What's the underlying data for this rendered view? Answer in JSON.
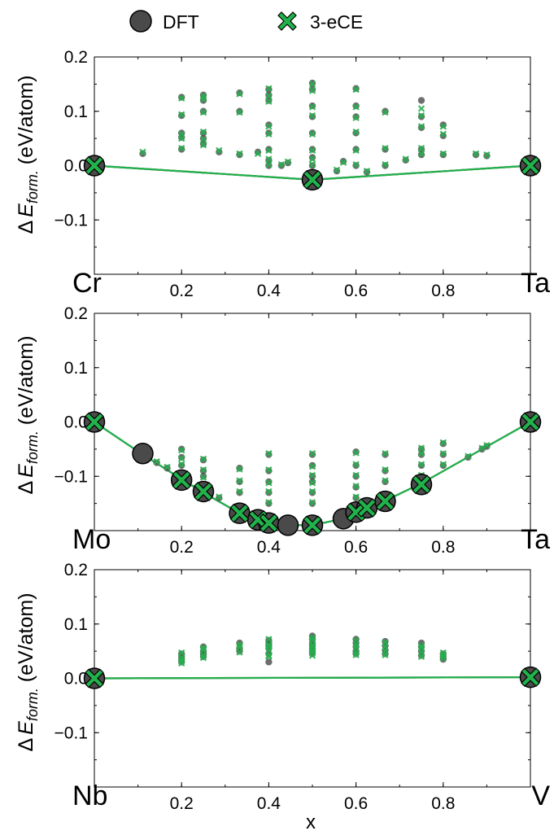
{
  "legend": {
    "dft_label": "DFT",
    "ece_label": "3-eCE",
    "dft_color": "#4a4a4a",
    "ece_color": "#22b24c"
  },
  "xlabel": "x",
  "ylabel_parts": {
    "delta": "Δ",
    "e": "E",
    "sub": "form.",
    "units": " (eV/atom)"
  },
  "chart_data": [
    {
      "type": "scatter",
      "left_label": "Cr",
      "right_label": "Ta",
      "xlim": [
        0,
        1
      ],
      "ylim": [
        -0.2,
        0.2
      ],
      "xticks": [
        "0.2",
        "0.4",
        "0.6",
        "0.8"
      ],
      "yticks": [
        "0.2",
        "0.1",
        "0.0",
        "−0.1"
      ],
      "hull": [
        [
          0,
          0.0
        ],
        [
          0.5,
          -0.026
        ],
        [
          1,
          0.0
        ]
      ],
      "ground_states": [
        [
          0,
          0.0
        ],
        [
          0.5,
          -0.026
        ],
        [
          1,
          0.0
        ]
      ],
      "dft_points": [
        [
          0.111,
          0.022
        ],
        [
          0.2,
          0.126
        ],
        [
          0.2,
          0.092
        ],
        [
          0.2,
          0.06
        ],
        [
          0.2,
          0.052
        ],
        [
          0.2,
          0.03
        ],
        [
          0.25,
          0.13
        ],
        [
          0.25,
          0.12
        ],
        [
          0.25,
          0.1
        ],
        [
          0.25,
          0.06
        ],
        [
          0.25,
          0.05
        ],
        [
          0.25,
          0.04
        ],
        [
          0.286,
          0.025
        ],
        [
          0.333,
          0.134
        ],
        [
          0.333,
          0.1
        ],
        [
          0.333,
          0.02
        ],
        [
          0.375,
          0.025
        ],
        [
          0.4,
          0.14
        ],
        [
          0.4,
          0.13
        ],
        [
          0.4,
          0.12
        ],
        [
          0.4,
          0.075
        ],
        [
          0.4,
          0.06
        ],
        [
          0.4,
          0.03
        ],
        [
          0.4,
          0.01
        ],
        [
          0.4,
          0.0
        ],
        [
          0.429,
          0.0
        ],
        [
          0.444,
          0.005
        ],
        [
          0.5,
          0.152
        ],
        [
          0.5,
          0.14
        ],
        [
          0.5,
          0.11
        ],
        [
          0.5,
          0.09
        ],
        [
          0.5,
          0.06
        ],
        [
          0.5,
          0.03
        ],
        [
          0.5,
          0.015
        ],
        [
          0.5,
          0.0
        ],
        [
          0.556,
          -0.01
        ],
        [
          0.571,
          0.008
        ],
        [
          0.6,
          0.142
        ],
        [
          0.6,
          0.11
        ],
        [
          0.6,
          0.09
        ],
        [
          0.6,
          0.06
        ],
        [
          0.6,
          0.03
        ],
        [
          0.6,
          0.0
        ],
        [
          0.625,
          -0.012
        ],
        [
          0.667,
          0.1
        ],
        [
          0.667,
          0.03
        ],
        [
          0.667,
          0.0
        ],
        [
          0.714,
          0.01
        ],
        [
          0.75,
          0.12
        ],
        [
          0.75,
          0.09
        ],
        [
          0.75,
          0.07
        ],
        [
          0.75,
          0.03
        ],
        [
          0.75,
          0.02
        ],
        [
          0.8,
          0.075
        ],
        [
          0.8,
          0.055
        ],
        [
          0.8,
          0.02
        ],
        [
          0.875,
          0.02
        ],
        [
          0.9,
          0.018
        ]
      ],
      "ece_points": [
        [
          0.111,
          0.025
        ],
        [
          0.2,
          0.124
        ],
        [
          0.2,
          0.094
        ],
        [
          0.2,
          0.058
        ],
        [
          0.2,
          0.05
        ],
        [
          0.2,
          0.032
        ],
        [
          0.25,
          0.128
        ],
        [
          0.25,
          0.122
        ],
        [
          0.25,
          0.098
        ],
        [
          0.25,
          0.062
        ],
        [
          0.25,
          0.048
        ],
        [
          0.25,
          0.038
        ],
        [
          0.286,
          0.028
        ],
        [
          0.333,
          0.132
        ],
        [
          0.333,
          0.098
        ],
        [
          0.333,
          0.022
        ],
        [
          0.375,
          0.022
        ],
        [
          0.4,
          0.142
        ],
        [
          0.4,
          0.128
        ],
        [
          0.4,
          0.118
        ],
        [
          0.4,
          0.072
        ],
        [
          0.4,
          0.058
        ],
        [
          0.4,
          0.028
        ],
        [
          0.4,
          0.012
        ],
        [
          0.4,
          0.002
        ],
        [
          0.429,
          0.002
        ],
        [
          0.444,
          0.007
        ],
        [
          0.5,
          0.15
        ],
        [
          0.5,
          0.138
        ],
        [
          0.5,
          0.108
        ],
        [
          0.5,
          0.092
        ],
        [
          0.5,
          0.058
        ],
        [
          0.5,
          0.028
        ],
        [
          0.5,
          0.012
        ],
        [
          0.5,
          0.002
        ],
        [
          0.556,
          -0.008
        ],
        [
          0.571,
          0.006
        ],
        [
          0.6,
          0.14
        ],
        [
          0.6,
          0.108
        ],
        [
          0.6,
          0.088
        ],
        [
          0.6,
          0.062
        ],
        [
          0.6,
          0.028
        ],
        [
          0.6,
          0.002
        ],
        [
          0.625,
          -0.01
        ],
        [
          0.667,
          0.098
        ],
        [
          0.667,
          0.032
        ],
        [
          0.667,
          0.002
        ],
        [
          0.714,
          0.012
        ],
        [
          0.75,
          0.105
        ],
        [
          0.75,
          0.092
        ],
        [
          0.75,
          0.072
        ],
        [
          0.75,
          0.032
        ],
        [
          0.75,
          0.022
        ],
        [
          0.8,
          0.072
        ],
        [
          0.8,
          0.058
        ],
        [
          0.8,
          0.022
        ],
        [
          0.875,
          0.022
        ],
        [
          0.9,
          0.02
        ]
      ]
    },
    {
      "type": "scatter",
      "left_label": "Mo",
      "right_label": "Ta",
      "xlim": [
        0,
        1
      ],
      "ylim": [
        -0.2,
        0.2
      ],
      "xticks": [
        "0.2",
        "0.4",
        "0.6",
        "0.8"
      ],
      "yticks": [
        "0.2",
        "0.1",
        "0.0",
        "−0.1"
      ],
      "hull": [
        [
          0,
          0.0
        ],
        [
          0.111,
          -0.06
        ],
        [
          0.2,
          -0.105
        ],
        [
          0.25,
          -0.13
        ],
        [
          0.333,
          -0.168
        ],
        [
          0.375,
          -0.18
        ],
        [
          0.4,
          -0.185
        ],
        [
          0.444,
          -0.19
        ],
        [
          0.5,
          -0.19
        ],
        [
          0.571,
          -0.178
        ],
        [
          0.6,
          -0.165
        ],
        [
          0.625,
          -0.158
        ],
        [
          0.667,
          -0.145
        ],
        [
          0.75,
          -0.113
        ],
        [
          1,
          0.0
        ]
      ],
      "ground_states": [
        [
          0,
          0.0
        ],
        [
          0.111,
          -0.058
        ],
        [
          0.2,
          -0.107
        ],
        [
          0.25,
          -0.128
        ],
        [
          0.333,
          -0.168
        ],
        [
          0.375,
          -0.18
        ],
        [
          0.4,
          -0.186
        ],
        [
          0.444,
          -0.19
        ],
        [
          0.5,
          -0.19
        ],
        [
          0.571,
          -0.178
        ],
        [
          0.6,
          -0.166
        ],
        [
          0.625,
          -0.158
        ],
        [
          0.667,
          -0.146
        ],
        [
          0.75,
          -0.115
        ],
        [
          1,
          0.0
        ]
      ],
      "dft_only": [
        [
          0.111,
          -0.058
        ],
        [
          0.444,
          -0.19
        ],
        [
          0.571,
          -0.178
        ],
        [
          0.75,
          -0.115
        ]
      ],
      "ece_marks": [
        [
          0,
          0.0
        ],
        [
          0.2,
          -0.107
        ],
        [
          0.25,
          -0.128
        ],
        [
          0.333,
          -0.168
        ],
        [
          0.375,
          -0.18
        ],
        [
          0.4,
          -0.186
        ],
        [
          0.5,
          -0.19
        ],
        [
          0.6,
          -0.166
        ],
        [
          0.625,
          -0.158
        ],
        [
          0.667,
          -0.146
        ],
        [
          0.75,
          -0.115
        ],
        [
          1,
          0.0
        ]
      ],
      "dft_points": [
        [
          0.143,
          -0.075
        ],
        [
          0.167,
          -0.085
        ],
        [
          0.2,
          -0.05
        ],
        [
          0.2,
          -0.065
        ],
        [
          0.2,
          -0.08
        ],
        [
          0.25,
          -0.07
        ],
        [
          0.25,
          -0.09
        ],
        [
          0.25,
          -0.1
        ],
        [
          0.286,
          -0.14
        ],
        [
          0.333,
          -0.085
        ],
        [
          0.333,
          -0.11
        ],
        [
          0.333,
          -0.13
        ],
        [
          0.4,
          -0.06
        ],
        [
          0.4,
          -0.09
        ],
        [
          0.4,
          -0.11
        ],
        [
          0.4,
          -0.13
        ],
        [
          0.4,
          -0.15
        ],
        [
          0.5,
          -0.06
        ],
        [
          0.5,
          -0.08
        ],
        [
          0.5,
          -0.1
        ],
        [
          0.5,
          -0.11
        ],
        [
          0.5,
          -0.13
        ],
        [
          0.5,
          -0.15
        ],
        [
          0.6,
          -0.055
        ],
        [
          0.6,
          -0.08
        ],
        [
          0.6,
          -0.1
        ],
        [
          0.6,
          -0.12
        ],
        [
          0.6,
          -0.14
        ],
        [
          0.667,
          -0.06
        ],
        [
          0.667,
          -0.09
        ],
        [
          0.667,
          -0.11
        ],
        [
          0.75,
          -0.05
        ],
        [
          0.75,
          -0.06
        ],
        [
          0.75,
          -0.08
        ],
        [
          0.75,
          -0.1
        ],
        [
          0.8,
          -0.04
        ],
        [
          0.8,
          -0.06
        ],
        [
          0.8,
          -0.08
        ],
        [
          0.857,
          -0.065
        ],
        [
          0.889,
          -0.05
        ],
        [
          0.9,
          -0.045
        ]
      ],
      "ece_points": [
        [
          0.143,
          -0.073
        ],
        [
          0.167,
          -0.083
        ],
        [
          0.2,
          -0.052
        ],
        [
          0.2,
          -0.067
        ],
        [
          0.2,
          -0.078
        ],
        [
          0.25,
          -0.068
        ],
        [
          0.25,
          -0.088
        ],
        [
          0.25,
          -0.102
        ],
        [
          0.286,
          -0.138
        ],
        [
          0.333,
          -0.087
        ],
        [
          0.333,
          -0.108
        ],
        [
          0.333,
          -0.128
        ],
        [
          0.4,
          -0.058
        ],
        [
          0.4,
          -0.088
        ],
        [
          0.4,
          -0.112
        ],
        [
          0.4,
          -0.128
        ],
        [
          0.4,
          -0.148
        ],
        [
          0.5,
          -0.058
        ],
        [
          0.5,
          -0.082
        ],
        [
          0.5,
          -0.098
        ],
        [
          0.5,
          -0.112
        ],
        [
          0.5,
          -0.128
        ],
        [
          0.5,
          -0.148
        ],
        [
          0.6,
          -0.057
        ],
        [
          0.6,
          -0.078
        ],
        [
          0.6,
          -0.098
        ],
        [
          0.6,
          -0.118
        ],
        [
          0.6,
          -0.138
        ],
        [
          0.667,
          -0.058
        ],
        [
          0.667,
          -0.088
        ],
        [
          0.667,
          -0.108
        ],
        [
          0.75,
          -0.048
        ],
        [
          0.75,
          -0.058
        ],
        [
          0.75,
          -0.078
        ],
        [
          0.75,
          -0.098
        ],
        [
          0.8,
          -0.038
        ],
        [
          0.8,
          -0.058
        ],
        [
          0.8,
          -0.078
        ],
        [
          0.857,
          -0.063
        ],
        [
          0.889,
          -0.048
        ],
        [
          0.9,
          -0.043
        ]
      ]
    },
    {
      "type": "scatter",
      "left_label": "Nb",
      "right_label": "V",
      "xlim": [
        0,
        1
      ],
      "ylim": [
        -0.2,
        0.2
      ],
      "xticks": [
        "0.2",
        "0.4",
        "0.6",
        "0.8"
      ],
      "yticks": [
        "0.2",
        "0.1",
        "0.0",
        "−0.1"
      ],
      "hull": [
        [
          0,
          0.0
        ],
        [
          1,
          0.002
        ]
      ],
      "ground_states": [
        [
          0,
          0.0
        ],
        [
          1,
          0.002
        ]
      ],
      "dft_points": [
        [
          0.2,
          0.045
        ],
        [
          0.2,
          0.04
        ],
        [
          0.2,
          0.035
        ],
        [
          0.2,
          0.03
        ],
        [
          0.25,
          0.058
        ],
        [
          0.25,
          0.05
        ],
        [
          0.25,
          0.045
        ],
        [
          0.25,
          0.04
        ],
        [
          0.333,
          0.065
        ],
        [
          0.333,
          0.055
        ],
        [
          0.333,
          0.05
        ],
        [
          0.4,
          0.07
        ],
        [
          0.4,
          0.065
        ],
        [
          0.4,
          0.06
        ],
        [
          0.4,
          0.055
        ],
        [
          0.4,
          0.045
        ],
        [
          0.4,
          0.03
        ],
        [
          0.5,
          0.078
        ],
        [
          0.5,
          0.072
        ],
        [
          0.5,
          0.065
        ],
        [
          0.5,
          0.06
        ],
        [
          0.5,
          0.055
        ],
        [
          0.5,
          0.05
        ],
        [
          0.5,
          0.045
        ],
        [
          0.6,
          0.072
        ],
        [
          0.6,
          0.065
        ],
        [
          0.6,
          0.058
        ],
        [
          0.6,
          0.05
        ],
        [
          0.6,
          0.045
        ],
        [
          0.667,
          0.068
        ],
        [
          0.667,
          0.06
        ],
        [
          0.667,
          0.052
        ],
        [
          0.667,
          0.045
        ],
        [
          0.75,
          0.065
        ],
        [
          0.75,
          0.058
        ],
        [
          0.75,
          0.05
        ],
        [
          0.75,
          0.042
        ],
        [
          0.8,
          0.045
        ],
        [
          0.8,
          0.04
        ],
        [
          0.8,
          0.035
        ]
      ],
      "ece_points": [
        [
          0.2,
          0.047
        ],
        [
          0.2,
          0.038
        ],
        [
          0.2,
          0.033
        ],
        [
          0.2,
          0.028
        ],
        [
          0.25,
          0.056
        ],
        [
          0.25,
          0.052
        ],
        [
          0.25,
          0.043
        ],
        [
          0.25,
          0.038
        ],
        [
          0.333,
          0.062
        ],
        [
          0.333,
          0.057
        ],
        [
          0.333,
          0.048
        ],
        [
          0.4,
          0.072
        ],
        [
          0.4,
          0.062
        ],
        [
          0.4,
          0.058
        ],
        [
          0.4,
          0.052
        ],
        [
          0.4,
          0.042
        ],
        [
          0.4,
          0.04
        ],
        [
          0.5,
          0.075
        ],
        [
          0.5,
          0.07
        ],
        [
          0.5,
          0.062
        ],
        [
          0.5,
          0.058
        ],
        [
          0.5,
          0.052
        ],
        [
          0.5,
          0.048
        ],
        [
          0.5,
          0.042
        ],
        [
          0.6,
          0.07
        ],
        [
          0.6,
          0.062
        ],
        [
          0.6,
          0.056
        ],
        [
          0.6,
          0.048
        ],
        [
          0.6,
          0.043
        ],
        [
          0.667,
          0.066
        ],
        [
          0.667,
          0.058
        ],
        [
          0.667,
          0.05
        ],
        [
          0.667,
          0.043
        ],
        [
          0.75,
          0.06
        ],
        [
          0.75,
          0.056
        ],
        [
          0.75,
          0.048
        ],
        [
          0.75,
          0.04
        ],
        [
          0.8,
          0.047
        ],
        [
          0.8,
          0.042
        ],
        [
          0.8,
          0.037
        ]
      ]
    }
  ]
}
